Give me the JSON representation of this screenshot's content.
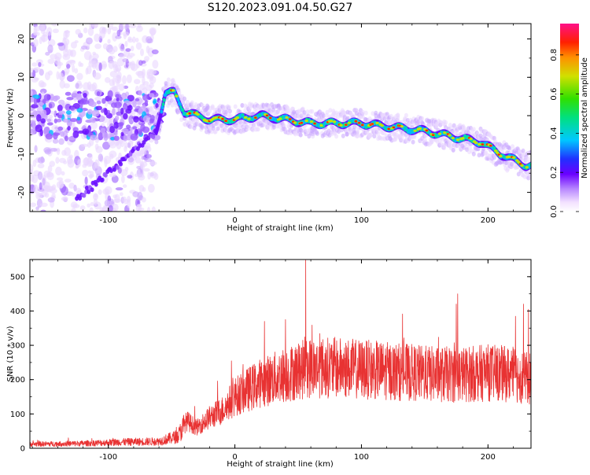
{
  "title": "S120.2023.091.04.50.G27",
  "colors": {
    "snr_line": "#e83232",
    "axis": "#000000",
    "background": "#ffffff"
  },
  "chart_data": [
    {
      "type": "heatmap",
      "name": "spectrogram",
      "xlabel": "Height of straight line (km)",
      "ylabel": "Frequency (Hz)",
      "xlim": [
        -162,
        234
      ],
      "ylim": [
        -25,
        24
      ],
      "x_ticks": [
        -100,
        0,
        100,
        200
      ],
      "y_ticks": [
        -20,
        -10,
        0,
        10,
        20
      ],
      "grid": false,
      "colorbar": {
        "label": "Normalized spectral amplitude",
        "range": [
          0,
          0.96
        ],
        "ticks": [
          "0.0",
          "0.2",
          "0.4",
          "0.6",
          "0.8"
        ],
        "tick_values": [
          0,
          0.2,
          0.4,
          0.6,
          0.8
        ],
        "colormap": "rainbow (white-violet-blue-cyan-green-yellow-red-magenta)"
      },
      "ridge_track": [
        {
          "x": -62,
          "y": -4
        },
        {
          "x": -55,
          "y": 6
        },
        {
          "x": -48,
          "y": 6
        },
        {
          "x": -40,
          "y": 1
        },
        {
          "x": -20,
          "y": -1
        },
        {
          "x": 0,
          "y": -1
        },
        {
          "x": 20,
          "y": 0
        },
        {
          "x": 60,
          "y": -2
        },
        {
          "x": 100,
          "y": -2
        },
        {
          "x": 150,
          "y": -4
        },
        {
          "x": 195,
          "y": -7
        },
        {
          "x": 210,
          "y": -10
        },
        {
          "x": 230,
          "y": -13
        }
      ]
    },
    {
      "type": "line",
      "name": "snr",
      "xlabel": "Height of straight line (km)",
      "ylabel": "SNR (10 * v/v)",
      "xlim": [
        -162,
        234
      ],
      "ylim": [
        0,
        550
      ],
      "x_ticks": [
        -100,
        0,
        100,
        200
      ],
      "y_ticks": [
        0,
        100,
        200,
        300,
        400,
        500
      ],
      "grid": false,
      "series": [
        {
          "color": "#e83232",
          "envelope": {
            "x": [
              -162,
              -120,
              -90,
              -60,
              -45,
              -38,
              -30,
              -20,
              -10,
              0,
              20,
              40,
              60,
              80,
              100,
              120,
              140,
              160,
              180,
              200,
              220,
              234
            ],
            "y": [
              12,
              14,
              18,
              20,
              35,
              80,
              60,
              90,
              110,
              150,
              190,
              215,
              235,
              235,
              230,
              225,
              220,
              215,
              215,
              220,
              215,
              200
            ]
          },
          "peaks": [
            {
              "x": 56,
              "y": 548
            },
            {
              "x": 176,
              "y": 450
            },
            {
              "x": 228,
              "y": 420
            },
            {
              "x": 232,
              "y": 405
            },
            {
              "x": 175,
              "y": 420
            },
            {
              "x": 40,
              "y": 375
            }
          ]
        }
      ]
    }
  ]
}
